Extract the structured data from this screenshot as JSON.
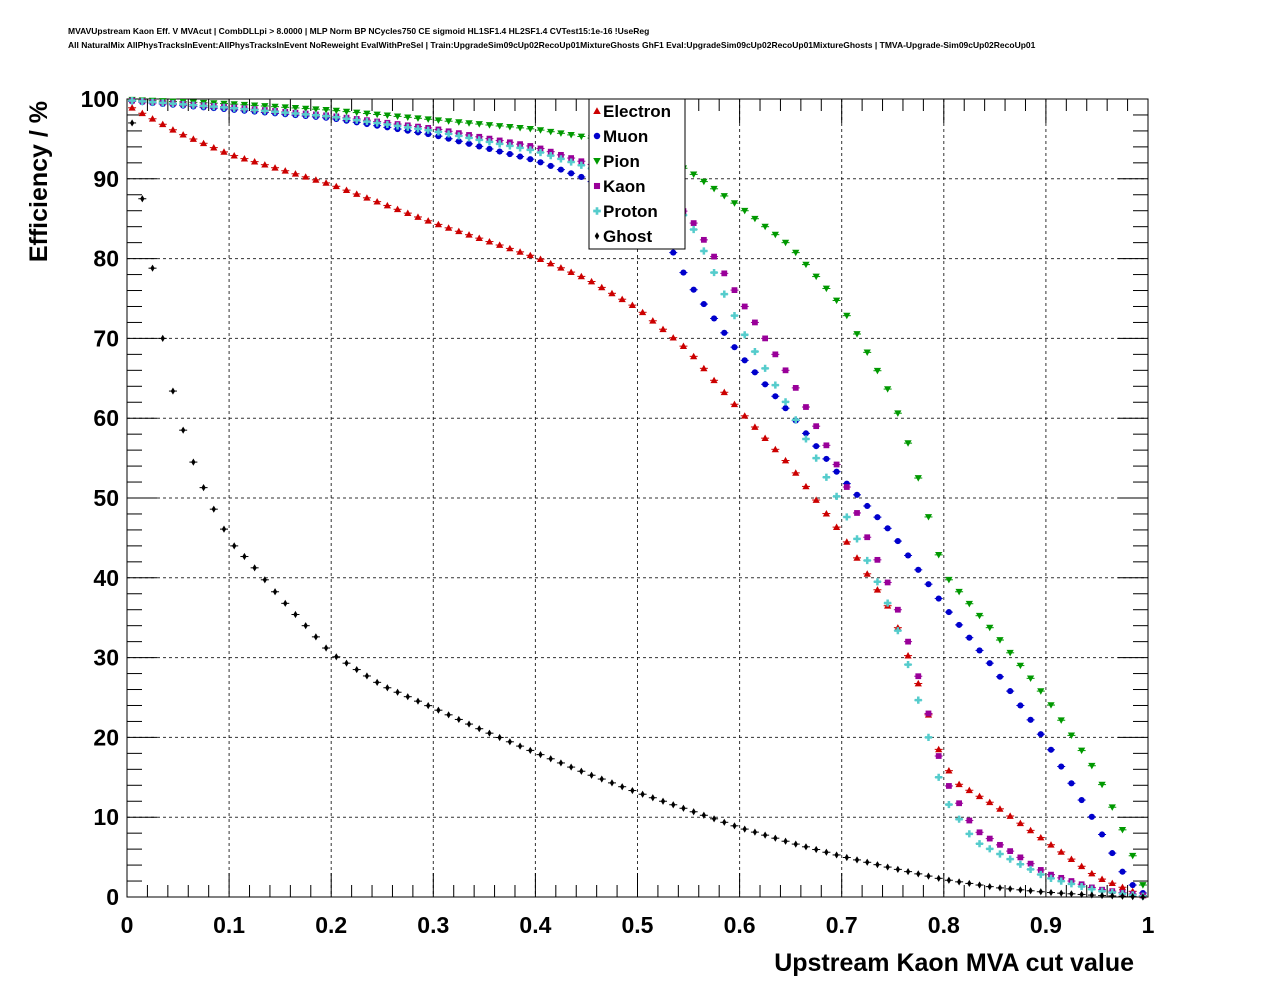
{
  "chart_data": {
    "type": "scatter",
    "title_lines": [
      "MVAVUpstream Kaon Eff. V MVAcut | CombDLLpi > 8.0000 | MLP Norm BP NCycles750 CE sigmoid HL1SF1.4 HL2SF1.4 CVTest15:1e-16 !UseReg",
      "All NaturalMix AllPhysTracksInEvent:AllPhysTracksInEvent NoReweight EvalWithPreSel | Train:UpgradeSim09cUp02RecoUp01MixtureGhosts GhF1 Eval:UpgradeSim09cUp02RecoUp01MixtureGhosts | TMVA-Upgrade-Sim09cUp02RecoUp01"
    ],
    "xlabel": "Upstream Kaon MVA cut value",
    "ylabel": "Efficiency / %",
    "xlim": [
      0,
      1
    ],
    "ylim": [
      0,
      100
    ],
    "xticks": [
      "0",
      "0.1",
      "0.2",
      "0.3",
      "0.4",
      "0.5",
      "0.6",
      "0.7",
      "0.8",
      "0.9",
      "1"
    ],
    "yticks": [
      "0",
      "10",
      "20",
      "30",
      "40",
      "50",
      "60",
      "70",
      "80",
      "90",
      "100"
    ],
    "grid": true,
    "legend_position": "top-center",
    "x_step": 0.01,
    "series": [
      {
        "name": "Electron",
        "color": "#cc0000",
        "marker": "triangle-up",
        "anchors": [
          [
            0.005,
            98.9
          ],
          [
            0.05,
            95.8
          ],
          [
            0.1,
            93.1
          ],
          [
            0.15,
            91.2
          ],
          [
            0.2,
            89.3
          ],
          [
            0.3,
            84.5
          ],
          [
            0.4,
            80.2
          ],
          [
            0.45,
            77.5
          ],
          [
            0.5,
            73.8
          ],
          [
            0.55,
            68.5
          ],
          [
            0.6,
            61.0
          ],
          [
            0.65,
            54.0
          ],
          [
            0.7,
            45.5
          ],
          [
            0.75,
            35.5
          ],
          [
            0.78,
            25.0
          ],
          [
            0.795,
            18.5
          ],
          [
            0.81,
            14.5
          ],
          [
            0.85,
            11.5
          ],
          [
            0.9,
            7.0
          ],
          [
            0.95,
            2.5
          ],
          [
            0.995,
            0.2
          ]
        ]
      },
      {
        "name": "Muon",
        "color": "#0000cc",
        "marker": "circle",
        "anchors": [
          [
            0.005,
            99.7
          ],
          [
            0.1,
            98.7
          ],
          [
            0.2,
            97.6
          ],
          [
            0.3,
            95.5
          ],
          [
            0.4,
            92.3
          ],
          [
            0.45,
            90.0
          ],
          [
            0.5,
            86.5
          ],
          [
            0.53,
            82.0
          ],
          [
            0.55,
            77.0
          ],
          [
            0.6,
            68.0
          ],
          [
            0.65,
            60.5
          ],
          [
            0.7,
            52.5
          ],
          [
            0.75,
            45.5
          ],
          [
            0.8,
            36.5
          ],
          [
            0.85,
            28.5
          ],
          [
            0.9,
            19.5
          ],
          [
            0.95,
            9.0
          ],
          [
            0.98,
            2.0
          ],
          [
            0.995,
            0.5
          ]
        ]
      },
      {
        "name": "Pion",
        "color": "#009900",
        "marker": "triangle-down",
        "anchors": [
          [
            0.005,
            99.9
          ],
          [
            0.1,
            99.4
          ],
          [
            0.2,
            98.6
          ],
          [
            0.3,
            97.4
          ],
          [
            0.4,
            96.2
          ],
          [
            0.5,
            94.2
          ],
          [
            0.55,
            91.0
          ],
          [
            0.6,
            86.5
          ],
          [
            0.65,
            81.5
          ],
          [
            0.7,
            74.0
          ],
          [
            0.75,
            62.5
          ],
          [
            0.77,
            55.0
          ],
          [
            0.78,
            50.0
          ],
          [
            0.8,
            40.5
          ],
          [
            0.85,
            33.0
          ],
          [
            0.9,
            25.0
          ],
          [
            0.95,
            15.5
          ],
          [
            0.98,
            7.0
          ],
          [
            0.995,
            1.5
          ]
        ]
      },
      {
        "name": "Kaon",
        "color": "#990099",
        "marker": "square",
        "anchors": [
          [
            0.005,
            99.8
          ],
          [
            0.1,
            99.0
          ],
          [
            0.2,
            97.9
          ],
          [
            0.3,
            96.3
          ],
          [
            0.4,
            94.0
          ],
          [
            0.5,
            90.0
          ],
          [
            0.55,
            85.5
          ],
          [
            0.6,
            75.0
          ],
          [
            0.65,
            65.0
          ],
          [
            0.7,
            53.0
          ],
          [
            0.72,
            46.5
          ],
          [
            0.75,
            38.0
          ],
          [
            0.77,
            30.0
          ],
          [
            0.785,
            23.0
          ],
          [
            0.8,
            15.0
          ],
          [
            0.83,
            8.5
          ],
          [
            0.9,
            3.0
          ],
          [
            0.95,
            1.0
          ],
          [
            0.995,
            0.2
          ]
        ]
      },
      {
        "name": "Proton",
        "color": "#55cccc",
        "marker": "cross",
        "anchors": [
          [
            0.005,
            99.8
          ],
          [
            0.1,
            98.9
          ],
          [
            0.2,
            97.8
          ],
          [
            0.3,
            96.0
          ],
          [
            0.4,
            93.5
          ],
          [
            0.5,
            89.5
          ],
          [
            0.55,
            85.0
          ],
          [
            0.6,
            71.5
          ],
          [
            0.65,
            61.0
          ],
          [
            0.7,
            49.0
          ],
          [
            0.72,
            43.5
          ],
          [
            0.75,
            35.5
          ],
          [
            0.77,
            27.0
          ],
          [
            0.785,
            20.0
          ],
          [
            0.8,
            12.5
          ],
          [
            0.83,
            7.0
          ],
          [
            0.9,
            2.5
          ],
          [
            0.95,
            0.8
          ],
          [
            0.995,
            0.1
          ]
        ]
      },
      {
        "name": "Ghost",
        "color": "#000000",
        "marker": "diamond",
        "anchors": [
          [
            0.005,
            97.0
          ],
          [
            0.015,
            87.5
          ],
          [
            0.025,
            78.8
          ],
          [
            0.035,
            70.0
          ],
          [
            0.045,
            63.4
          ],
          [
            0.055,
            58.5
          ],
          [
            0.065,
            54.5
          ],
          [
            0.075,
            51.3
          ],
          [
            0.085,
            48.6
          ],
          [
            0.095,
            46.1
          ],
          [
            0.105,
            44.0
          ],
          [
            0.12,
            42.0
          ],
          [
            0.15,
            37.5
          ],
          [
            0.2,
            30.5
          ],
          [
            0.25,
            26.5
          ],
          [
            0.3,
            23.7
          ],
          [
            0.35,
            20.8
          ],
          [
            0.4,
            18.1
          ],
          [
            0.45,
            15.5
          ],
          [
            0.5,
            13.1
          ],
          [
            0.55,
            10.9
          ],
          [
            0.6,
            8.7
          ],
          [
            0.65,
            6.8
          ],
          [
            0.7,
            5.1
          ],
          [
            0.75,
            3.6
          ],
          [
            0.8,
            2.2
          ],
          [
            0.85,
            1.2
          ],
          [
            0.9,
            0.6
          ],
          [
            0.95,
            0.2
          ],
          [
            0.995,
            0.0
          ]
        ]
      }
    ]
  }
}
